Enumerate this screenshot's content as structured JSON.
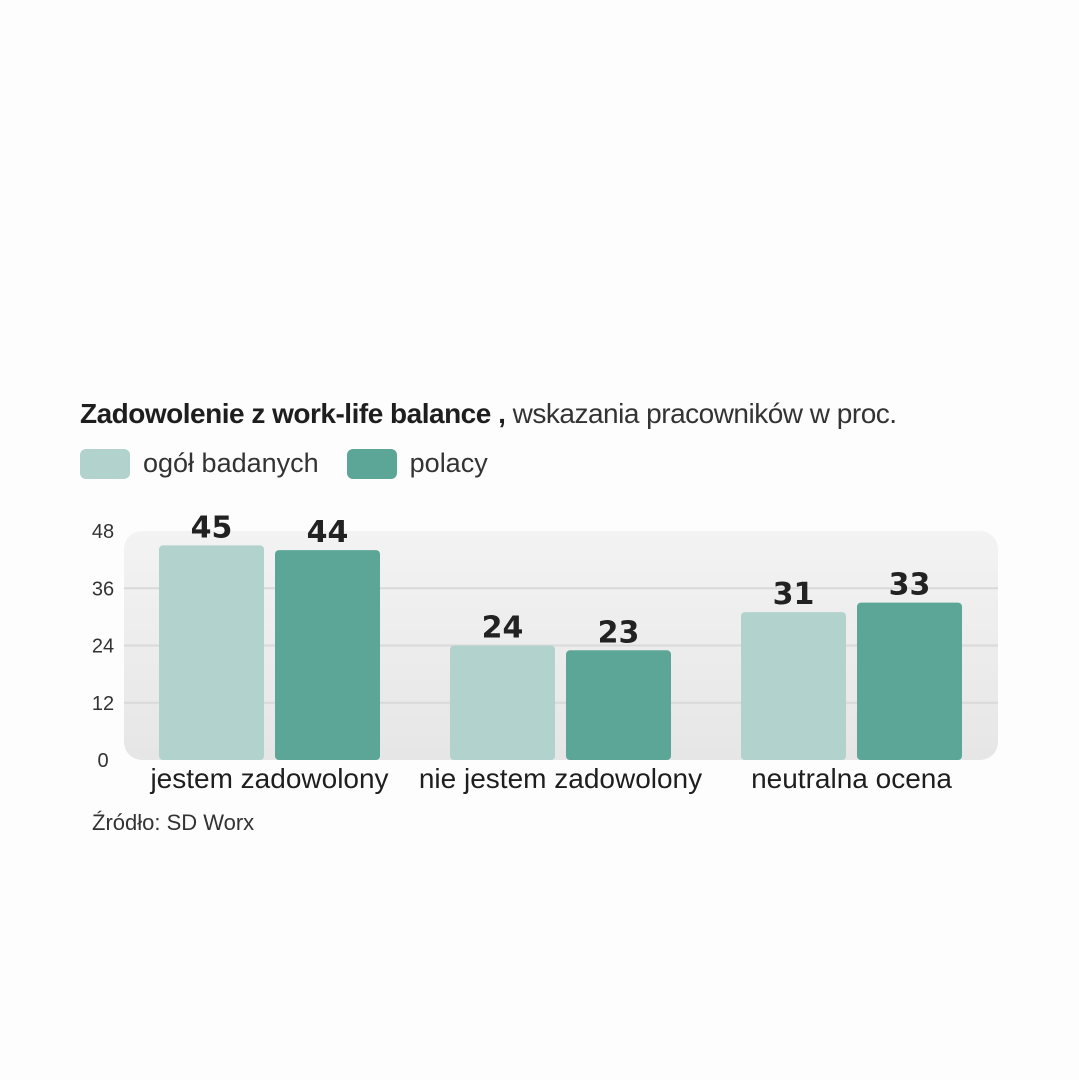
{
  "title_bold": "Zadowolenie z work-life balance ,",
  "title_rest": "wskazania pracowników w proc.",
  "legend": [
    {
      "label": "ogół badanych",
      "color": "#b2d3cd"
    },
    {
      "label": "polacy",
      "color": "#5ca698"
    }
  ],
  "source": "Źródło: SD Worx",
  "chart_data": {
    "type": "bar",
    "title": "Zadowolenie z work-life balance , wskazania pracowników w proc.",
    "categories": [
      "jestem zadowolony",
      "nie jestem zadowolony",
      "neutralna ocena"
    ],
    "series": [
      {
        "name": "ogół badanych",
        "values": [
          45,
          24,
          31
        ],
        "color": "#b2d3cd"
      },
      {
        "name": "polacy",
        "values": [
          44,
          23,
          33
        ],
        "color": "#5ca698"
      }
    ],
    "yticks": [
      0,
      12,
      24,
      36,
      48
    ],
    "ylim": [
      0,
      48
    ],
    "grid": true,
    "legend_position": "top-left",
    "xlabel": "",
    "ylabel": ""
  }
}
